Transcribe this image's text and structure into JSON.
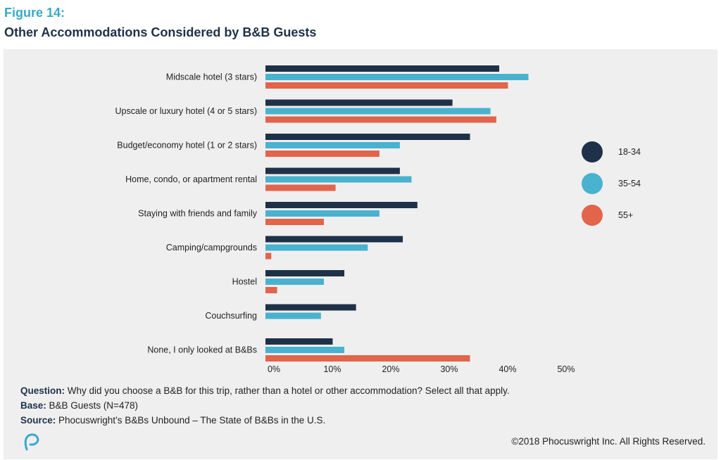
{
  "header": {
    "figure_label": "Figure 14:",
    "title": "Other Accommodations Considered by B&B Guests"
  },
  "chart_data": {
    "type": "bar",
    "orientation": "horizontal",
    "categories": [
      "Midscale hotel (3 stars)",
      "Upscale or luxury hotel (4 or 5 stars)",
      "Budget/economy hotel (1 or 2 stars)",
      "Home, condo, or apartment rental",
      "Staying with friends and family",
      "Camping/campgrounds",
      "Hostel",
      "Couchsurfing",
      "None, I only looked at B&Bs"
    ],
    "series": [
      {
        "name": "18-34",
        "color": "#1e3148",
        "values": [
          40,
          32,
          35,
          23,
          26,
          23.5,
          13.5,
          15.5,
          11.5
        ]
      },
      {
        "name": "35-54",
        "color": "#49b2cf",
        "values": [
          45,
          38.5,
          23,
          25,
          19.5,
          17.5,
          10,
          9.5,
          13.5
        ]
      },
      {
        "name": "55+",
        "color": "#e2644b",
        "values": [
          41.5,
          39.5,
          19.5,
          12,
          10,
          1,
          2,
          0,
          35
        ]
      }
    ],
    "x_ticks": [
      "0%",
      "10%",
      "20%",
      "30%",
      "40%",
      "50%"
    ],
    "xlim": [
      0,
      50
    ],
    "legend_position": "right",
    "grid": false
  },
  "notes": {
    "question_label": "Question:",
    "question_text": " Why did you choose a B&B for this trip, rather than a hotel or other accommodation? Select all that apply.",
    "base_label": "Base:",
    "base_text": " B&B Guests (N=478)",
    "source_label": "Source:",
    "source_text": " Phocuswright’s B&Bs Unbound – The State of B&Bs in the U.S."
  },
  "footer": {
    "copyright": "©2018 Phocuswright Inc. All Rights Reserved.",
    "logo_icon": "phocuswright-logo-icon"
  }
}
